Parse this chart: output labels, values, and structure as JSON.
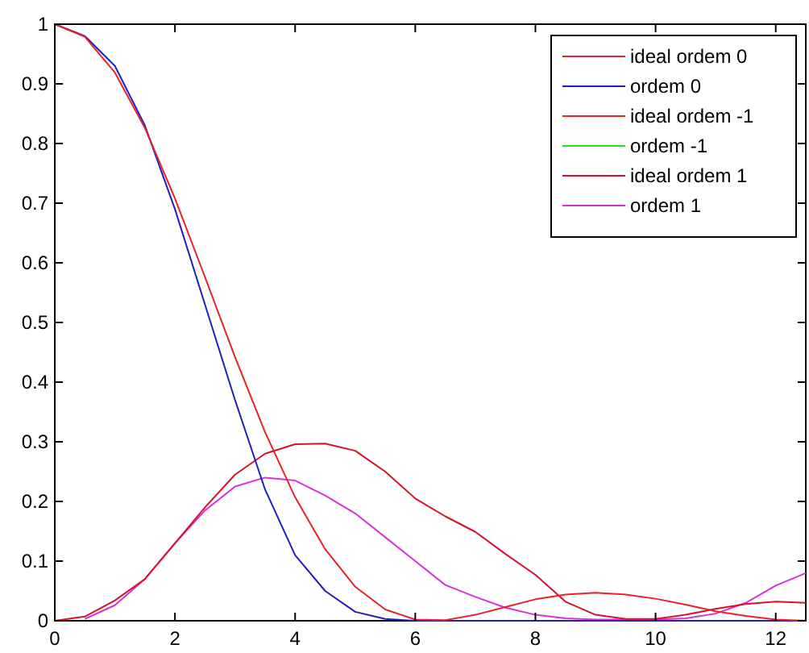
{
  "chart_data": {
    "type": "line",
    "x": [
      0,
      0.5,
      1,
      1.5,
      2,
      2.5,
      3,
      3.5,
      4,
      4.5,
      5,
      5.5,
      6,
      6.5,
      7,
      7.5,
      8,
      8.5,
      9,
      9.5,
      10,
      10.5,
      11,
      11.5,
      12,
      12.5
    ],
    "series": [
      {
        "name": "ideal ordem 0",
        "color": "#e8212a",
        "values": [
          1,
          0.979,
          0.919,
          0.826,
          0.708,
          0.576,
          0.442,
          0.316,
          0.207,
          0.12,
          0.057,
          0.019,
          0.002,
          0.001,
          0.01,
          0.023,
          0.036,
          0.044,
          0.047,
          0.044,
          0.037,
          0.027,
          0.016,
          0.008,
          0.002,
          0
        ]
      },
      {
        "name": "ordem 0",
        "color": "#1f1fbf",
        "values": [
          1,
          0.98,
          0.93,
          0.83,
          0.69,
          0.53,
          0.37,
          0.22,
          0.11,
          0.05,
          0.015,
          0.003,
          0,
          0,
          0,
          0,
          0,
          0,
          0,
          0,
          0,
          0,
          0,
          0,
          0,
          0
        ]
      },
      {
        "name": "ideal ordem -1",
        "color": "#e8212a",
        "values": [
          null,
          null,
          null,
          null,
          null,
          null,
          null,
          null,
          null,
          null,
          null,
          null,
          null,
          null,
          null,
          null,
          null,
          null,
          null,
          null,
          null,
          null,
          null,
          null,
          null,
          null
        ]
      },
      {
        "name": "ordem -1",
        "color": "#22dd22",
        "values": [
          null,
          null,
          null,
          null,
          null,
          null,
          null,
          null,
          null,
          null,
          null,
          null,
          null,
          null,
          null,
          null,
          null,
          null,
          null,
          null,
          null,
          null,
          null,
          null,
          null,
          null
        ]
      },
      {
        "name": "ideal ordem 1",
        "color": "#d4122a",
        "values": [
          0,
          0.007,
          0.034,
          0.07,
          0.13,
          0.19,
          0.245,
          0.28,
          0.296,
          0.297,
          0.285,
          0.25,
          0.205,
          0.175,
          0.149,
          0.112,
          0.077,
          0.032,
          0.01,
          0.003,
          0.003,
          0.01,
          0.02,
          0.028,
          0.032,
          0.03
        ]
      },
      {
        "name": "ordem 1",
        "color": "#d633d6",
        "values": [
          null,
          0.003,
          0.026,
          0.07,
          0.13,
          0.185,
          0.225,
          0.24,
          0.235,
          0.21,
          0.18,
          0.14,
          0.1,
          0.06,
          0.04,
          0.022,
          0.01,
          0.004,
          0.002,
          0.002,
          0.002,
          0.004,
          0.012,
          0.03,
          0.059,
          0.08
        ]
      }
    ],
    "xlim": [
      0,
      12.5
    ],
    "xticks": [
      0,
      2,
      4,
      6,
      8,
      10,
      12
    ],
    "ylim": [
      0,
      1
    ],
    "yticks": [
      0,
      0.1,
      0.2,
      0.3,
      0.4,
      0.5,
      0.6,
      0.7,
      0.8,
      0.9,
      1
    ],
    "legend": "top right",
    "grid": false
  }
}
